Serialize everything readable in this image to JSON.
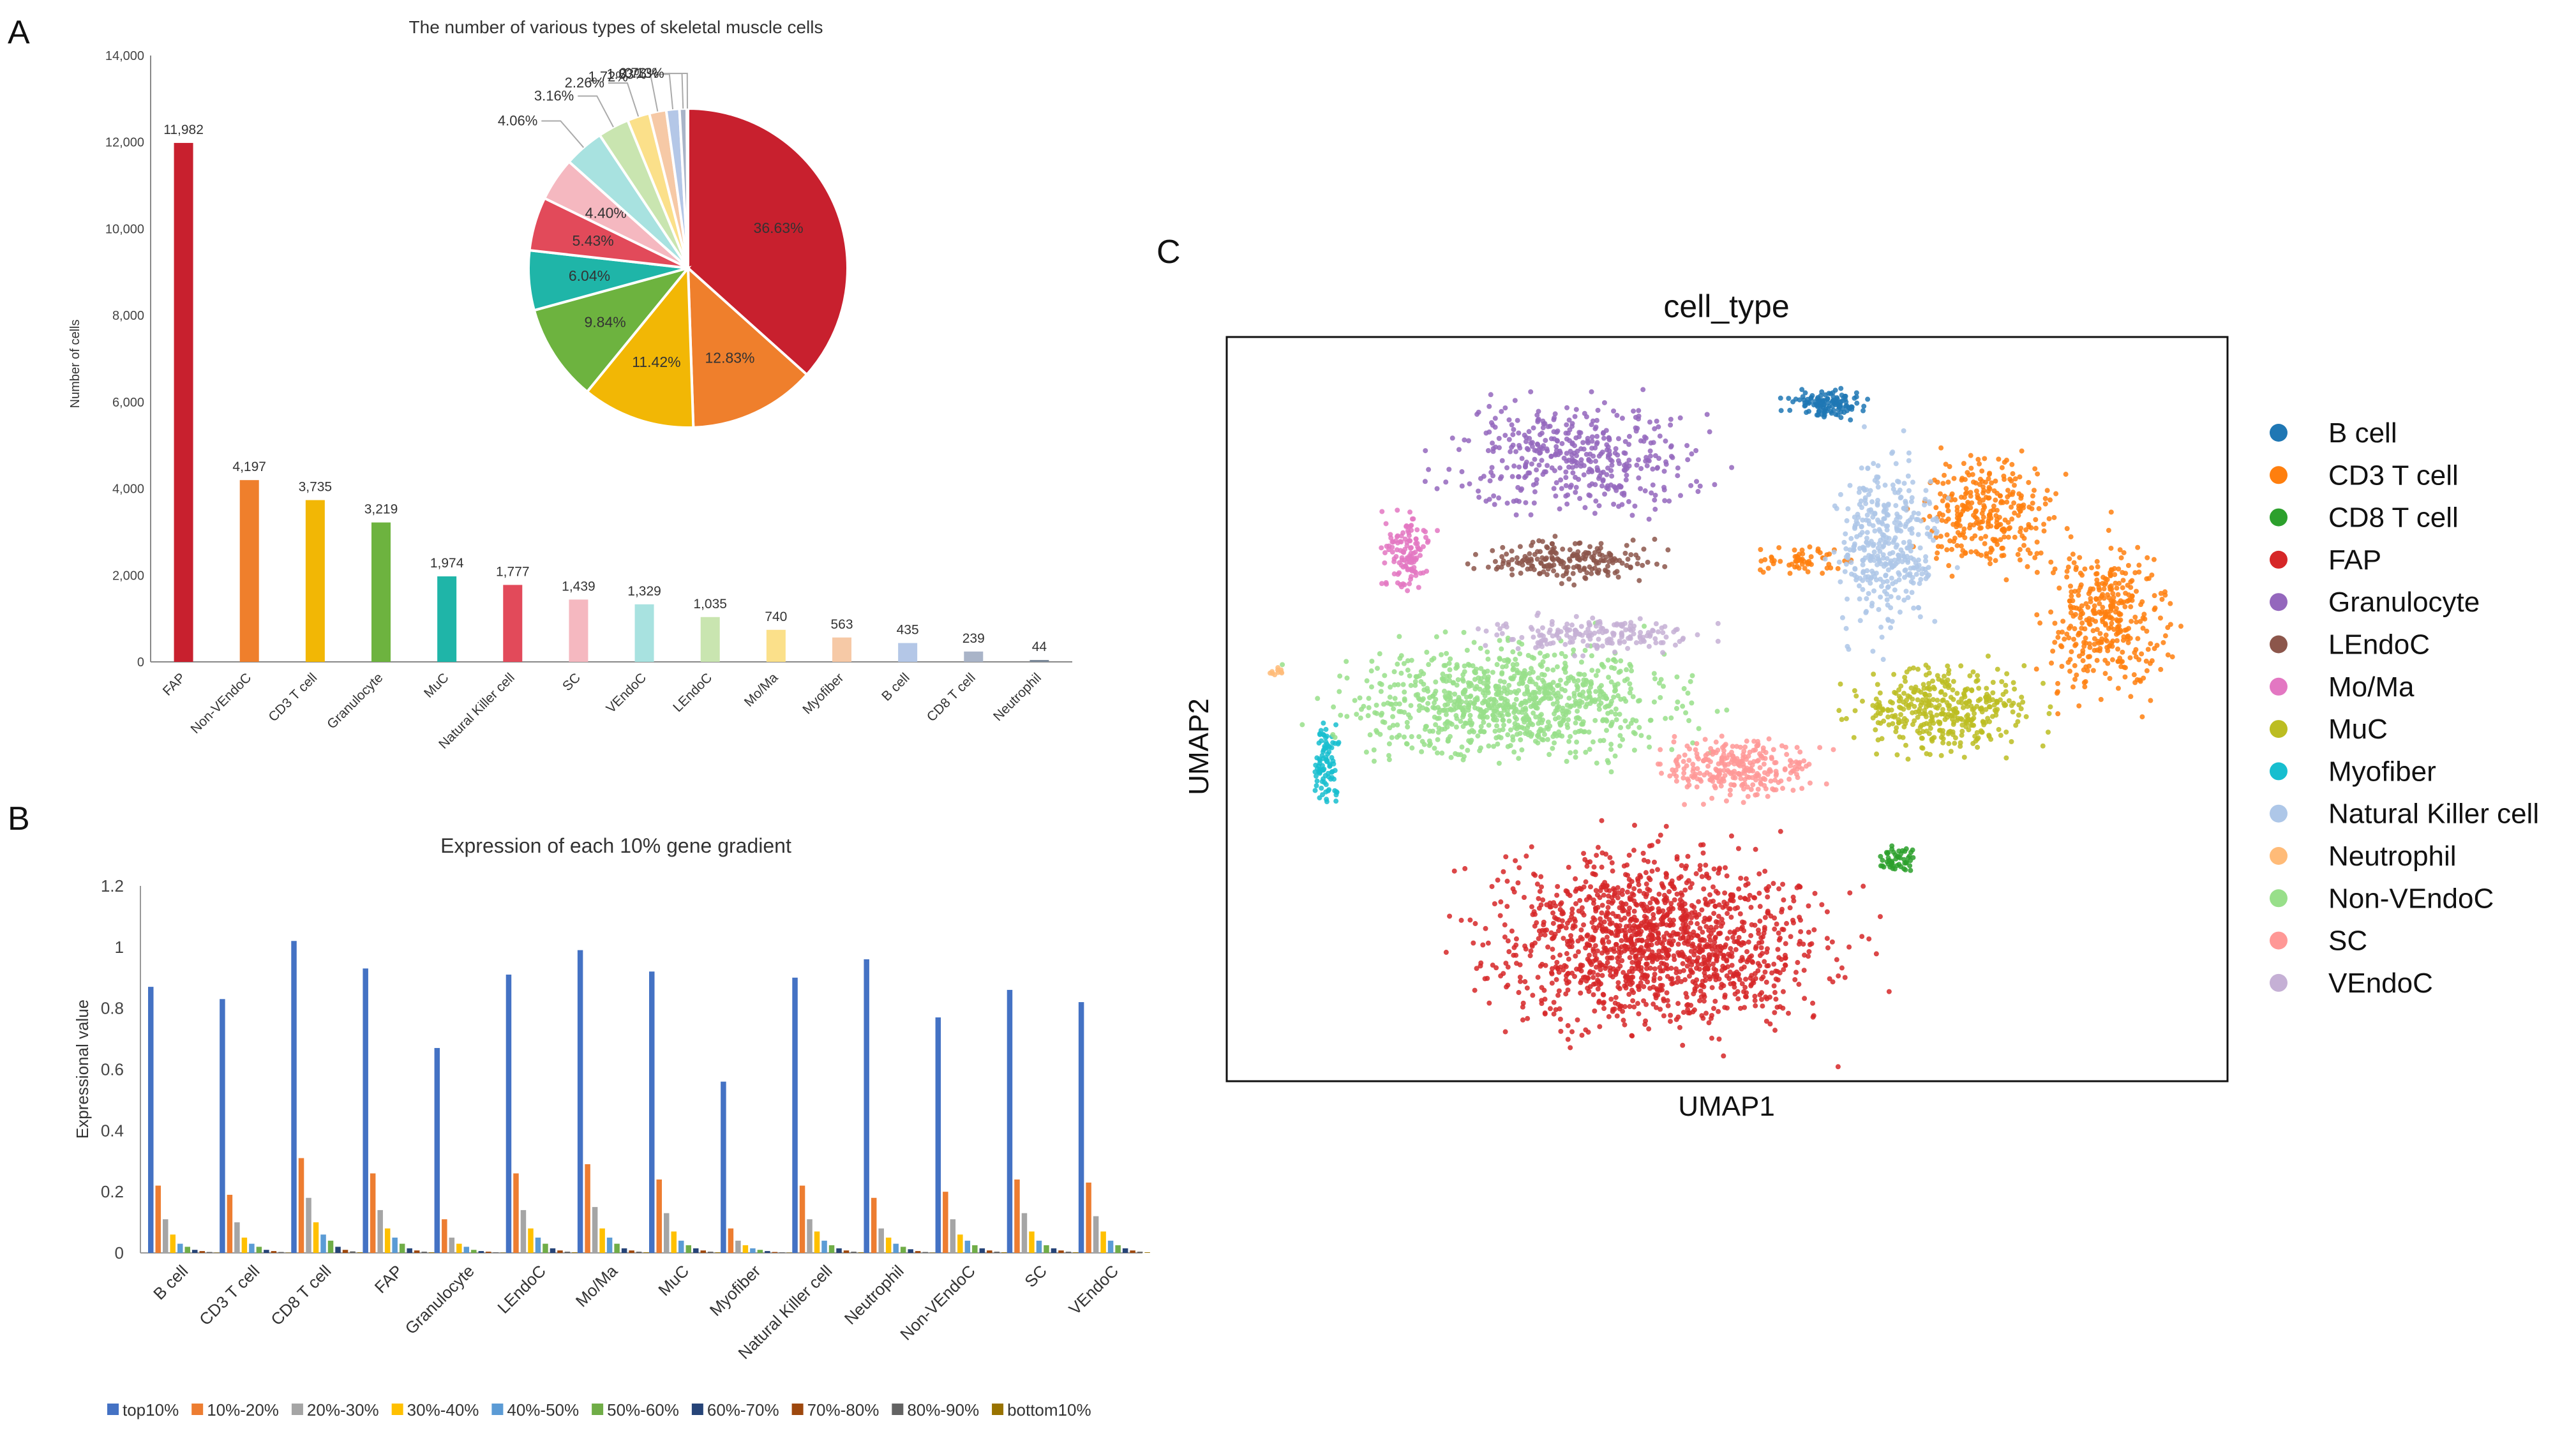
{
  "panels": {
    "a": "A",
    "b": "B",
    "c": "C"
  },
  "chart_data": [
    {
      "id": "A_bar",
      "type": "bar",
      "title": "The number of various types of skeletal muscle cells",
      "ylabel": "Number of cells",
      "xlabel": "",
      "ylim": [
        0,
        14000
      ],
      "yticks": [
        0,
        2000,
        4000,
        6000,
        8000,
        10000,
        12000,
        14000
      ],
      "ytick_labels": [
        "0",
        "2,000",
        "4,000",
        "6,000",
        "8,000",
        "10,000",
        "12,000",
        "14,000"
      ],
      "categories": [
        "FAP",
        "Non-VEndoC",
        "CD3 T cell",
        "Granulocyte",
        "MuC",
        "Natural Killer cell",
        "SC",
        "VEndoC",
        "LEndoC",
        "Mo/Ma",
        "Myofiber",
        "B cell",
        "CD8 T cell",
        "Neutrophil"
      ],
      "values": [
        11982,
        4197,
        3735,
        3219,
        1974,
        1777,
        1439,
        1329,
        1035,
        740,
        563,
        435,
        239,
        44
      ],
      "value_labels": [
        "11,982",
        "4,197",
        "3,735",
        "3,219",
        "1,974",
        "1,777",
        "1,439",
        "1,329",
        "1,035",
        "740",
        "563",
        "435",
        "239",
        "44"
      ],
      "colors": [
        "#c8202e",
        "#ef7f2c",
        "#f2b705",
        "#6db33f",
        "#1fb5a8",
        "#e24a5a",
        "#f5b8c0",
        "#a8e2e0",
        "#c9e5b0",
        "#fbe08a",
        "#f6c9a6",
        "#b4c7e7",
        "#a9b4c8",
        "#7c8a9a"
      ]
    },
    {
      "id": "A_pie",
      "type": "pie",
      "labels": [
        "FAP",
        "Non-VEndoC",
        "CD3 T cell",
        "Granulocyte",
        "MuC",
        "Natural Killer cell",
        "SC",
        "VEndoC",
        "LEndoC",
        "Mo/Ma",
        "Myofiber",
        "B cell",
        "CD8 T cell",
        "Neutrophil"
      ],
      "values": [
        36.63,
        12.83,
        11.42,
        9.84,
        6.04,
        5.43,
        4.4,
        4.06,
        3.16,
        2.26,
        1.72,
        1.33,
        0.73,
        0.13
      ],
      "value_labels": [
        "36.63%",
        "12.83%",
        "11.42%",
        "9.84%",
        "6.04%",
        "5.43%",
        "4.40%",
        "4.06%",
        "3.16%",
        "2.26%",
        "1.72%",
        "1.33%",
        "0.73%",
        "0.13%"
      ],
      "colors": [
        "#c8202e",
        "#ef7f2c",
        "#f2b705",
        "#6db33f",
        "#1fb5a8",
        "#e24a5a",
        "#f5b8c0",
        "#a8e2e0",
        "#c9e5b0",
        "#fbe08a",
        "#f6c9a6",
        "#b4c7e7",
        "#a9b4c8",
        "#7c8a9a"
      ]
    },
    {
      "id": "B",
      "type": "bar",
      "title": "Expression of each 10% gene gradient",
      "ylabel": "Expressional value",
      "xlabel": "",
      "ylim": [
        0,
        1.2
      ],
      "yticks": [
        0,
        0.2,
        0.4,
        0.6,
        0.8,
        1,
        1.2
      ],
      "ytick_labels": [
        "0",
        "0.2",
        "0.4",
        "0.6",
        "0.8",
        "1",
        "1.2"
      ],
      "legend_position": "bottom",
      "categories": [
        "B cell",
        "CD3 T cell",
        "CD8 T cell",
        "FAP",
        "Granulocyte",
        "LEndoC",
        "Mo/Ma",
        "MuC",
        "Myofiber",
        "Natural Killer cell",
        "Neutrophil",
        "Non-VEndoC",
        "SC",
        "VEndoC"
      ],
      "series": [
        {
          "name": "top10%",
          "color": "#4472c4",
          "values": [
            0.87,
            0.83,
            1.02,
            0.93,
            0.67,
            0.91,
            0.99,
            0.92,
            0.56,
            0.9,
            0.96,
            0.77,
            0.86,
            0.82
          ]
        },
        {
          "name": "10%-20%",
          "color": "#ed7d31",
          "values": [
            0.22,
            0.19,
            0.31,
            0.26,
            0.11,
            0.26,
            0.29,
            0.24,
            0.08,
            0.22,
            0.18,
            0.2,
            0.24,
            0.23
          ]
        },
        {
          "name": "20%-30%",
          "color": "#a5a5a5",
          "values": [
            0.11,
            0.1,
            0.18,
            0.14,
            0.05,
            0.14,
            0.15,
            0.13,
            0.04,
            0.11,
            0.08,
            0.11,
            0.13,
            0.12
          ]
        },
        {
          "name": "30%-40%",
          "color": "#ffc000",
          "values": [
            0.06,
            0.05,
            0.1,
            0.08,
            0.03,
            0.08,
            0.08,
            0.07,
            0.025,
            0.07,
            0.05,
            0.06,
            0.07,
            0.07
          ]
        },
        {
          "name": "40%-50%",
          "color": "#5b9bd5",
          "values": [
            0.03,
            0.03,
            0.06,
            0.05,
            0.02,
            0.05,
            0.05,
            0.04,
            0.015,
            0.04,
            0.03,
            0.04,
            0.04,
            0.04
          ]
        },
        {
          "name": "50%-60%",
          "color": "#70ad47",
          "values": [
            0.02,
            0.02,
            0.04,
            0.03,
            0.01,
            0.03,
            0.03,
            0.025,
            0.01,
            0.025,
            0.02,
            0.025,
            0.025,
            0.025
          ]
        },
        {
          "name": "60%-70%",
          "color": "#264478",
          "values": [
            0.01,
            0.01,
            0.02,
            0.015,
            0.006,
            0.015,
            0.015,
            0.015,
            0.006,
            0.015,
            0.012,
            0.015,
            0.015,
            0.015
          ]
        },
        {
          "name": "70%-80%",
          "color": "#9e480e",
          "values": [
            0.006,
            0.006,
            0.01,
            0.008,
            0.004,
            0.008,
            0.008,
            0.008,
            0.003,
            0.008,
            0.006,
            0.008,
            0.008,
            0.008
          ]
        },
        {
          "name": "80%-90%",
          "color": "#636363",
          "values": [
            0.003,
            0.003,
            0.005,
            0.004,
            0.002,
            0.004,
            0.004,
            0.004,
            0.002,
            0.004,
            0.003,
            0.004,
            0.004,
            0.004
          ]
        },
        {
          "name": "bottom10%",
          "color": "#997300",
          "values": [
            0.001,
            0.001,
            0.002,
            0.002,
            0.001,
            0.002,
            0.002,
            0.002,
            0.001,
            0.002,
            0.001,
            0.002,
            0.002,
            0.002
          ]
        }
      ]
    },
    {
      "id": "C",
      "type": "scatter",
      "title": "cell_type",
      "xlabel": "UMAP1",
      "ylabel": "UMAP2",
      "xlim": [
        0,
        100
      ],
      "ylim": [
        0,
        100
      ],
      "legend_position": "right",
      "clusters": [
        {
          "name": "B cell",
          "color": "#1f77b4",
          "center": [
            60,
            91
          ],
          "spread": [
            2.5,
            1.2
          ],
          "n": 120
        },
        {
          "name": "CD3 T cell",
          "color": "#ff7f0e",
          "center": [
            76,
            76
          ],
          "spread": [
            4.5,
            5
          ],
          "n": 300
        },
        {
          "name": "CD3 T cell",
          "color": "#ff7f0e",
          "center": [
            88,
            62
          ],
          "spread": [
            4,
            7
          ],
          "n": 360
        },
        {
          "name": "CD3 T cell",
          "color": "#ff7f0e",
          "center": [
            58,
            70
          ],
          "spread": [
            3,
            1.2
          ],
          "n": 60
        },
        {
          "name": "CD8 T cell",
          "color": "#2ca02c",
          "center": [
            67,
            30
          ],
          "spread": [
            1.3,
            1.2
          ],
          "n": 50
        },
        {
          "name": "FAP",
          "color": "#d62728",
          "center": [
            43,
            19
          ],
          "spread": [
            11,
            8
          ],
          "n": 1400
        },
        {
          "name": "Granulocyte",
          "color": "#9467bd",
          "center": [
            35,
            84
          ],
          "spread": [
            8,
            5
          ],
          "n": 420
        },
        {
          "name": "LEndoC",
          "color": "#8c564b",
          "center": [
            34,
            70
          ],
          "spread": [
            6,
            1.8
          ],
          "n": 200
        },
        {
          "name": "Mo/Ma",
          "color": "#e377c2",
          "center": [
            18,
            71
          ],
          "spread": [
            1.6,
            3.5
          ],
          "n": 120
        },
        {
          "name": "MuC",
          "color": "#bcbd22",
          "center": [
            72,
            50
          ],
          "spread": [
            6,
            4
          ],
          "n": 380
        },
        {
          "name": "Myofiber",
          "color": "#17becf",
          "center": [
            10,
            43
          ],
          "spread": [
            0.8,
            3.5
          ],
          "n": 90
        },
        {
          "name": "Natural Killer cell",
          "color": "#aec7e8",
          "center": [
            66,
            72
          ],
          "spread": [
            3.5,
            8
          ],
          "n": 380
        },
        {
          "name": "Neutrophil",
          "color": "#ffbb78",
          "center": [
            5,
            55
          ],
          "spread": [
            0.6,
            0.4
          ],
          "n": 10
        },
        {
          "name": "Non-VEndoC",
          "color": "#98df8a",
          "center": [
            29,
            51
          ],
          "spread": [
            11,
            5
          ],
          "n": 900
        },
        {
          "name": "SC",
          "color": "#ff9896",
          "center": [
            51,
            42
          ],
          "spread": [
            5,
            2.6
          ],
          "n": 280
        },
        {
          "name": "VEndoC",
          "color": "#c5b0d5",
          "center": [
            37,
            60
          ],
          "spread": [
            7,
            1.5
          ],
          "n": 180
        }
      ],
      "legend": [
        {
          "label": "B cell",
          "color": "#1f77b4"
        },
        {
          "label": "CD3 T cell",
          "color": "#ff7f0e"
        },
        {
          "label": "CD8 T cell",
          "color": "#2ca02c"
        },
        {
          "label": "FAP",
          "color": "#d62728"
        },
        {
          "label": "Granulocyte",
          "color": "#9467bd"
        },
        {
          "label": "LEndoC",
          "color": "#8c564b"
        },
        {
          "label": "Mo/Ma",
          "color": "#e377c2"
        },
        {
          "label": "MuC",
          "color": "#bcbd22"
        },
        {
          "label": "Myofiber",
          "color": "#17becf"
        },
        {
          "label": "Natural Killer cell",
          "color": "#aec7e8"
        },
        {
          "label": "Neutrophil",
          "color": "#ffbb78"
        },
        {
          "label": "Non-VEndoC",
          "color": "#98df8a"
        },
        {
          "label": "SC",
          "color": "#ff9896"
        },
        {
          "label": "VEndoC",
          "color": "#c5b0d5"
        }
      ]
    }
  ]
}
